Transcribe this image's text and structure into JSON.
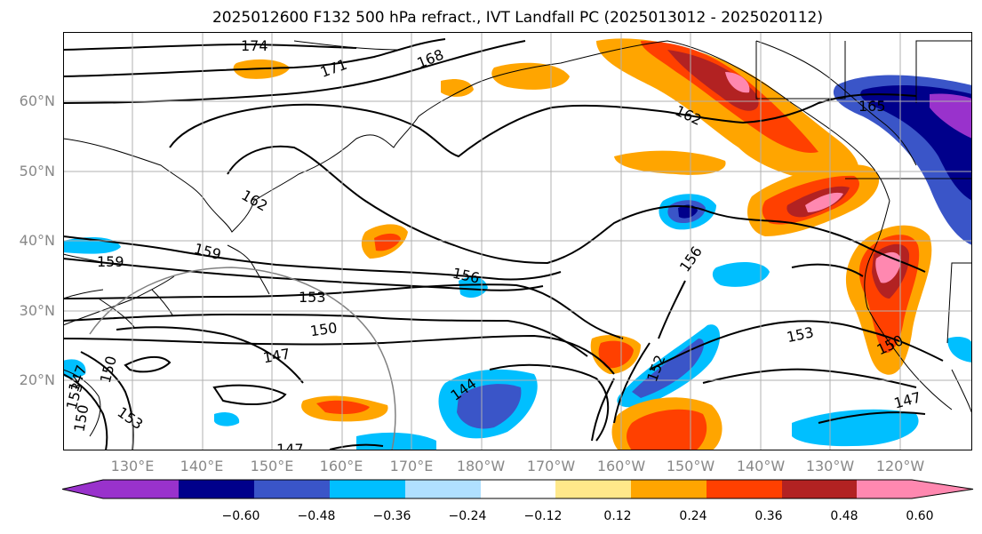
{
  "title": "2025012600 F132 500 hPa refract., IVT Landfall PC (2025013012 - 2025020112)",
  "lat_labels": [
    "60°N",
    "50°N",
    "40°N",
    "30°N",
    "20°N"
  ],
  "lon_labels": [
    "130°E",
    "140°E",
    "150°E",
    "160°E",
    "170°E",
    "180°W",
    "170°W",
    "160°W",
    "150°W",
    "140°W",
    "130°W",
    "120°W"
  ],
  "contour_labels": [
    "174",
    "171",
    "168",
    "165",
    "162",
    "162",
    "159",
    "159",
    "156",
    "156",
    "153",
    "153",
    "153",
    "150",
    "150",
    "150",
    "147",
    "147",
    "147",
    "144",
    "152",
    "147",
    "150",
    "153"
  ],
  "colorbar": {
    "ticks": [
      "−0.60",
      "−0.48",
      "−0.36",
      "−0.24",
      "−0.12",
      "0.12",
      "0.24",
      "0.36",
      "0.48",
      "0.60"
    ],
    "colors": [
      "#9932cc",
      "#00008b",
      "#3a55c8",
      "#00bfff",
      "#b0e0ff",
      "#ffffff",
      "#ffe88a",
      "#ffa500",
      "#ff4000",
      "#b22222",
      "#ff88b0"
    ]
  },
  "colors": {
    "grid": "#b0b0b0",
    "axis_label": "#888888",
    "contour": "#000000"
  }
}
